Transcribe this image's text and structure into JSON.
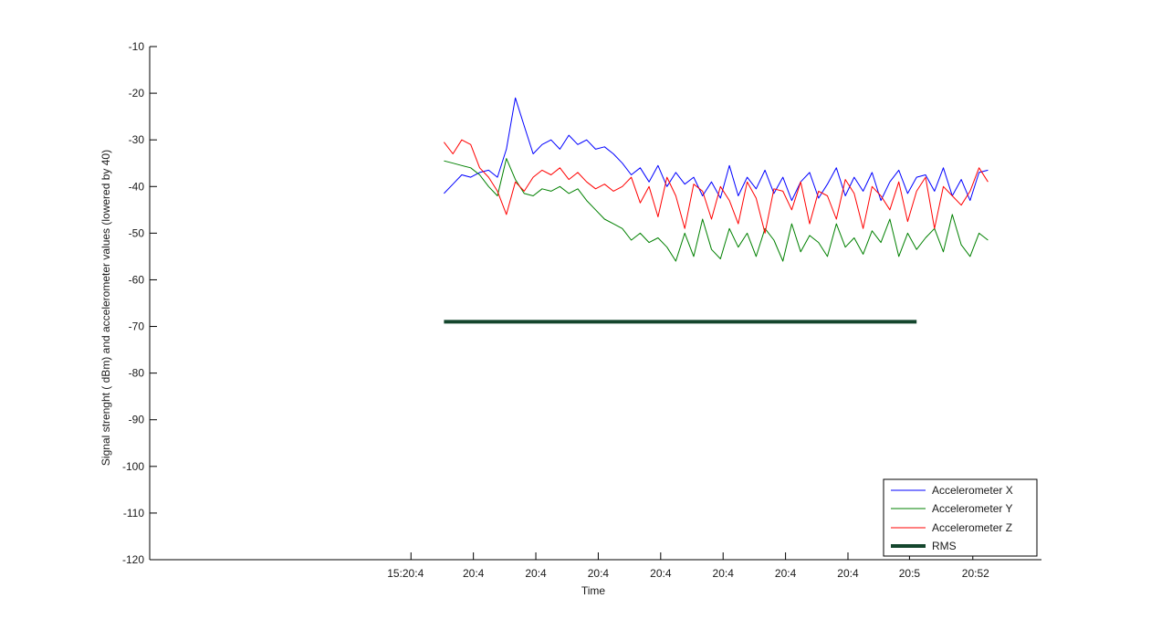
{
  "chart_data": {
    "type": "line",
    "title": "",
    "xlabel": "Time",
    "ylabel": "Signal strenght ( dBm) and accelerometer values (lowered by 40)",
    "ylim": [
      -120,
      -10
    ],
    "yticks": [
      -10,
      -20,
      -30,
      -40,
      -50,
      -60,
      -70,
      -80,
      -90,
      -100,
      -110,
      -120
    ],
    "xlim": [
      0,
      100
    ],
    "xticks": [
      {
        "value": 29.3,
        "label": "15:20:4"
      },
      {
        "value": 36.3,
        "label": "20:4"
      },
      {
        "value": 43.3,
        "label": "20:4"
      },
      {
        "value": 50.3,
        "label": "20:4"
      },
      {
        "value": 57.3,
        "label": "20:4"
      },
      {
        "value": 64.3,
        "label": "20:4"
      },
      {
        "value": 71.3,
        "label": "20:4"
      },
      {
        "value": 78.3,
        "label": "20:4"
      },
      {
        "value": 85.2,
        "label": "20:5"
      },
      {
        "value": 92.3,
        "label": "20:52"
      }
    ],
    "grid": false,
    "legend_position": "bottom-right",
    "series": [
      {
        "name": "Accelerometer X",
        "color": "#0000ff",
        "x": [
          33,
          34,
          35,
          36,
          37,
          38,
          39,
          40,
          41,
          42,
          43,
          44,
          45,
          46,
          47,
          48,
          49,
          50,
          51,
          52,
          53,
          54,
          55,
          56,
          57,
          58,
          59,
          60,
          61,
          62,
          63,
          64,
          65,
          66,
          67,
          68,
          69,
          70,
          71,
          72,
          73,
          74,
          75,
          76,
          77,
          78,
          79,
          80,
          81,
          82,
          83,
          84,
          85,
          86,
          87,
          88,
          89,
          90,
          91,
          92,
          93,
          94
        ],
        "y": [
          -41.5,
          -39.5,
          -37.5,
          -38,
          -37,
          -36.5,
          -38,
          -32,
          -21,
          -27,
          -33,
          -31,
          -30,
          -32,
          -29,
          -31,
          -30,
          -32,
          -31.5,
          -33,
          -35,
          -37.5,
          -36,
          -39,
          -35.5,
          -40,
          -37,
          -39.5,
          -38,
          -42,
          -39,
          -42.5,
          -35.5,
          -42,
          -38,
          -40.5,
          -36.5,
          -41.5,
          -38,
          -43,
          -39,
          -37,
          -42.5,
          -39.5,
          -36,
          -42,
          -38,
          -41,
          -37,
          -43,
          -39,
          -36.5,
          -41.5,
          -38,
          -37.5,
          -41,
          -36,
          -42,
          -38.5,
          -43,
          -37,
          -36.5
        ]
      },
      {
        "name": "Accelerometer Y",
        "color": "#008000",
        "x": [
          33,
          34,
          35,
          36,
          37,
          38,
          39,
          40,
          41,
          42,
          43,
          44,
          45,
          46,
          47,
          48,
          49,
          50,
          51,
          52,
          53,
          54,
          55,
          56,
          57,
          58,
          59,
          60,
          61,
          62,
          63,
          64,
          65,
          66,
          67,
          68,
          69,
          70,
          71,
          72,
          73,
          74,
          75,
          76,
          77,
          78,
          79,
          80,
          81,
          82,
          83,
          84,
          85,
          86,
          87,
          88,
          89,
          90,
          91,
          92,
          93,
          94
        ],
        "y": [
          -34.5,
          -35,
          -35.5,
          -36,
          -37.5,
          -40,
          -42,
          -34,
          -38.5,
          -41.5,
          -42,
          -40.5,
          -41,
          -40,
          -41.5,
          -40.5,
          -43,
          -45,
          -47,
          -48,
          -49,
          -51.5,
          -50,
          -52,
          -51,
          -53,
          -56,
          -50,
          -55,
          -47,
          -53.5,
          -55.5,
          -49,
          -53,
          -50,
          -55,
          -49,
          -51.5,
          -56,
          -48,
          -54,
          -50.5,
          -52,
          -55,
          -48,
          -53,
          -51,
          -54.5,
          -49.5,
          -52,
          -47,
          -55,
          -50,
          -53.5,
          -51,
          -49,
          -54,
          -46,
          -52.5,
          -55,
          -50,
          -51.5
        ]
      },
      {
        "name": "Accelerometer Z",
        "color": "#ff0000",
        "x": [
          33,
          34,
          35,
          36,
          37,
          38,
          39,
          40,
          41,
          42,
          43,
          44,
          45,
          46,
          47,
          48,
          49,
          50,
          51,
          52,
          53,
          54,
          55,
          56,
          57,
          58,
          59,
          60,
          61,
          62,
          63,
          64,
          65,
          66,
          67,
          68,
          69,
          70,
          71,
          72,
          73,
          74,
          75,
          76,
          77,
          78,
          79,
          80,
          81,
          82,
          83,
          84,
          85,
          86,
          87,
          88,
          89,
          90,
          91,
          92,
          93,
          94
        ],
        "y": [
          -30.5,
          -33,
          -30,
          -31,
          -36,
          -38,
          -41,
          -46,
          -39,
          -41,
          -38,
          -36.5,
          -37.5,
          -36,
          -38.5,
          -37,
          -39,
          -40.5,
          -39.5,
          -41,
          -40,
          -38,
          -43.5,
          -40,
          -46.5,
          -38,
          -42,
          -49,
          -39.5,
          -41,
          -47,
          -40,
          -43,
          -48,
          -39,
          -42.5,
          -50,
          -40.5,
          -41,
          -45,
          -39,
          -48,
          -41,
          -42,
          -47,
          -38.5,
          -41.5,
          -49,
          -40,
          -42,
          -45,
          -39,
          -47.5,
          -41,
          -38,
          -49,
          -40,
          -42,
          -44,
          -41,
          -36,
          -39
        ]
      },
      {
        "name": "RMS",
        "color": "#14462d",
        "x": [
          33,
          86
        ],
        "y": [
          -69,
          -69
        ]
      }
    ]
  }
}
